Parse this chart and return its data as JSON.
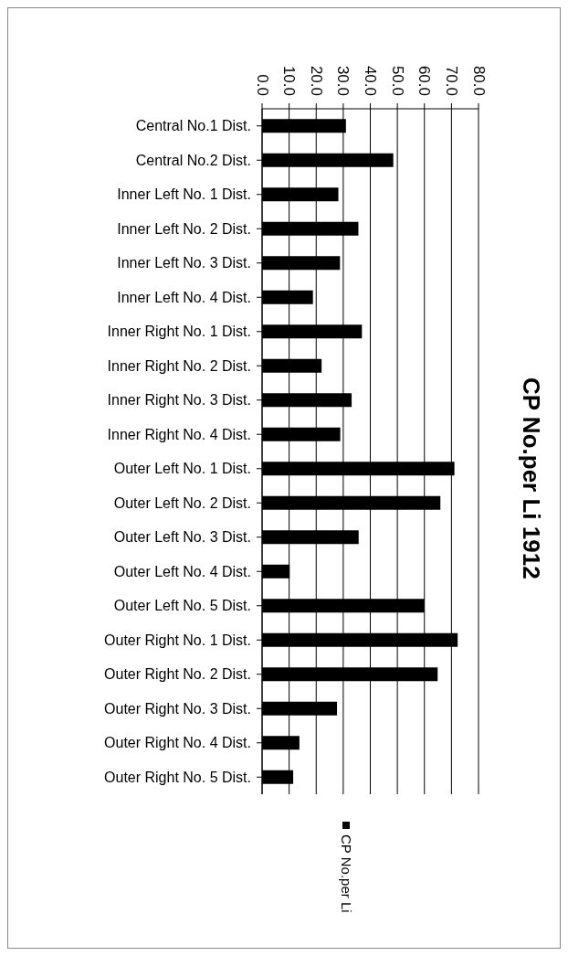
{
  "chart_data": {
    "type": "bar",
    "orientation": "horizontal",
    "title": "CP No.per Li 1912",
    "categories": [
      "Central No.1 Dist.",
      "Central No.2 Dist.",
      "Inner Left No. 1 Dist.",
      "Inner Left No. 2 Dist.",
      "Inner Left No. 3 Dist.",
      "Inner Left No. 4 Dist.",
      "Inner Right No. 1 Dist.",
      "Inner Right No. 2 Dist.",
      "Inner Right No. 3 Dist.",
      "Inner Right No. 4 Dist.",
      "Outer Left No. 1 Dist.",
      "Outer Left No. 2 Dist.",
      "Outer Left No. 3 Dist.",
      "Outer Left No. 4 Dist.",
      "Outer Left No. 5 Dist.",
      "Outer Right No. 1 Dist.",
      "Outer Right No. 2 Dist.",
      "Outer Right No. 3 Dist.",
      "Outer Right No. 4 Dist.",
      "Outer Right No. 5 Dist."
    ],
    "series": [
      {
        "name": "CP No.per Li",
        "color": "#000000",
        "values": [
          31.0,
          48.5,
          28.2,
          35.6,
          28.8,
          18.8,
          36.9,
          22.0,
          33.1,
          28.9,
          71.1,
          65.9,
          35.7,
          10.2,
          60.0,
          72.3,
          64.9,
          27.7,
          13.8,
          11.5
        ]
      }
    ],
    "xlim": [
      0,
      80
    ],
    "xticks": [
      {
        "value": 0,
        "label": "0.0"
      },
      {
        "value": 10,
        "label": "10.0"
      },
      {
        "value": 20,
        "label": "20.0"
      },
      {
        "value": 30,
        "label": "30.0"
      },
      {
        "value": 40,
        "label": "40.0"
      },
      {
        "value": 50,
        "label": "50.0"
      },
      {
        "value": 60,
        "label": "60.0"
      },
      {
        "value": 70,
        "label": "70.0"
      },
      {
        "value": 80,
        "label": "80.0"
      }
    ],
    "grid": "x",
    "legend": "bottom"
  }
}
